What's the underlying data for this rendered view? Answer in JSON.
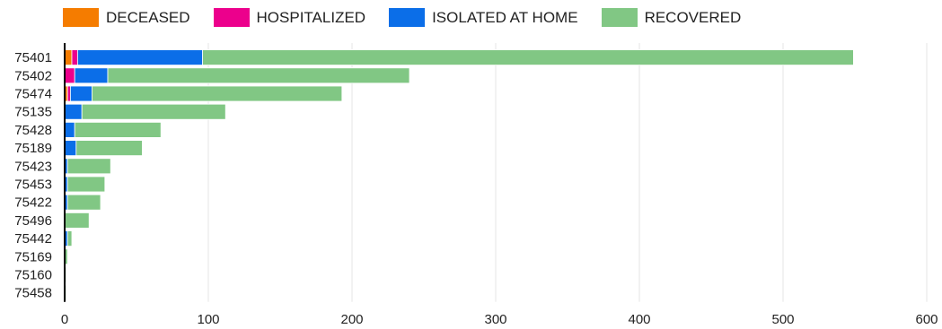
{
  "chart_data": {
    "type": "bar",
    "orientation": "horizontal",
    "stacked": true,
    "categories": [
      "75401",
      "75402",
      "75474",
      "75135",
      "75428",
      "75189",
      "75423",
      "75453",
      "75422",
      "75496",
      "75442",
      "75169",
      "75160",
      "75458"
    ],
    "series": [
      {
        "name": "DECEASED",
        "color": "#f57c00",
        "values": [
          5,
          0,
          2,
          0,
          0,
          0,
          0,
          0,
          0,
          0,
          0,
          0,
          0,
          0
        ]
      },
      {
        "name": "HOSPITALIZED",
        "color": "#ec008c",
        "values": [
          4,
          7,
          2,
          0,
          0,
          0,
          0,
          0,
          0,
          0,
          0,
          0,
          0,
          0
        ]
      },
      {
        "name": "ISOLATED AT HOME",
        "color": "#0b6ee8",
        "values": [
          87,
          23,
          15,
          12,
          7,
          8,
          2,
          2,
          2,
          0,
          2,
          0,
          0,
          0
        ]
      },
      {
        "name": "RECOVERED",
        "color": "#81c784",
        "values": [
          453,
          210,
          174,
          100,
          60,
          46,
          30,
          26,
          23,
          17,
          3,
          2,
          1,
          1
        ]
      }
    ],
    "xlim": [
      0,
      600
    ],
    "xticks": [
      0,
      100,
      200,
      300,
      400,
      500,
      600
    ],
    "grid": true,
    "legend_position": "top-left"
  }
}
